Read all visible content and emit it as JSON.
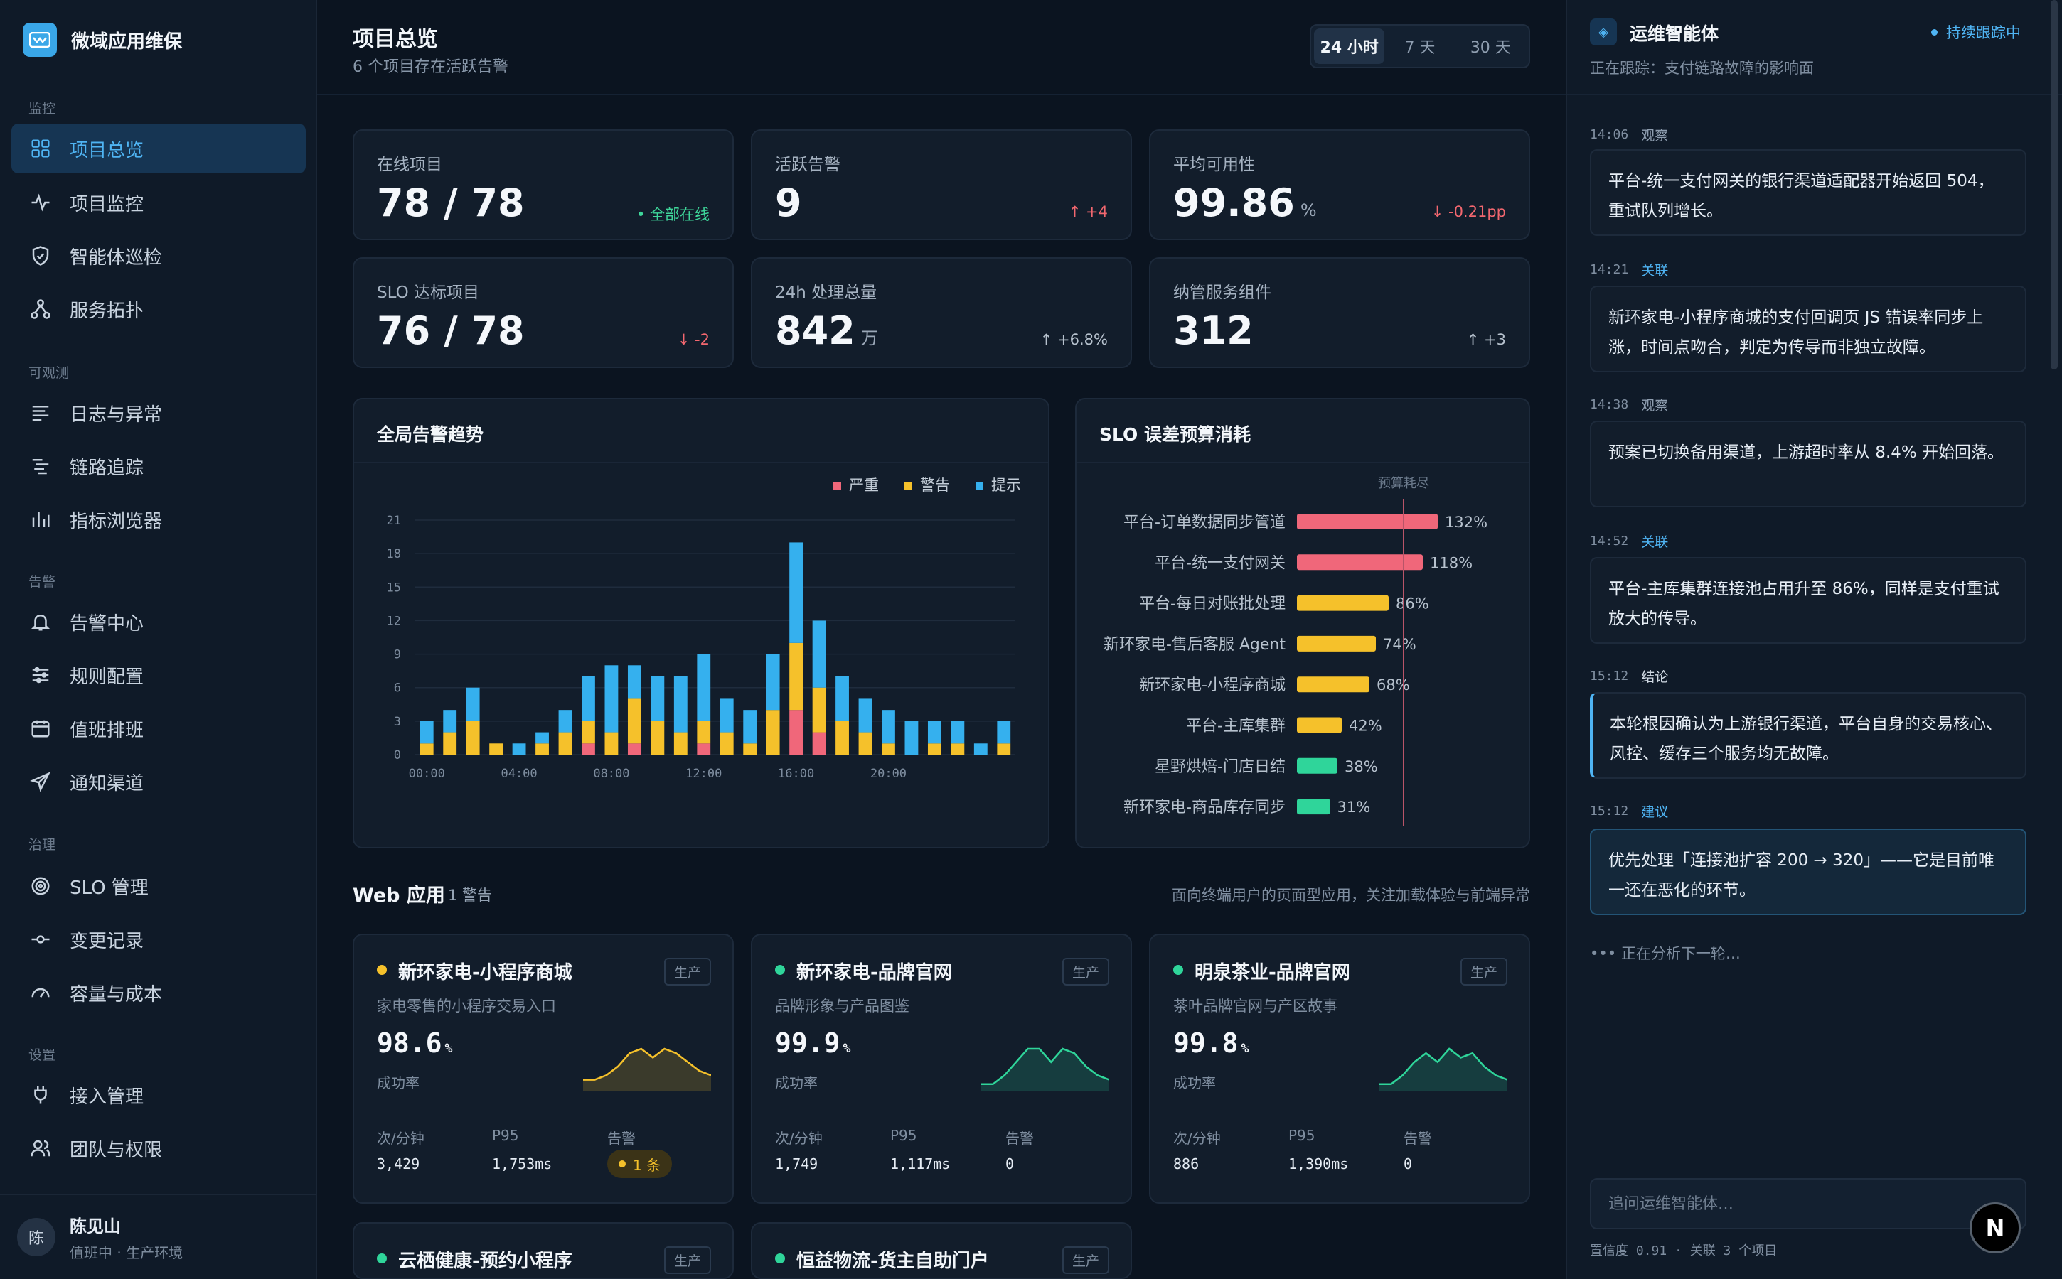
{
  "sidebar": {
    "brand": "微域应用维保",
    "sections": {
      "monitor": "监控",
      "observe": "可观测",
      "alert": "告警",
      "govern": "治理",
      "settings": "设置"
    },
    "items": [
      {
        "label": "项目总览",
        "icon": "grid-icon"
      },
      {
        "label": "项目监控",
        "icon": "activity-icon"
      },
      {
        "label": "智能体巡检",
        "icon": "shield-icon"
      },
      {
        "label": "服务拓扑",
        "icon": "topology-icon"
      },
      {
        "label": "日志与异常",
        "icon": "log-icon"
      },
      {
        "label": "链路追踪",
        "icon": "trace-icon"
      },
      {
        "label": "指标浏览器",
        "icon": "bar-chart-icon"
      },
      {
        "label": "告警中心",
        "icon": "bell-icon"
      },
      {
        "label": "规则配置",
        "icon": "sliders-icon"
      },
      {
        "label": "值班排班",
        "icon": "calendar-icon"
      },
      {
        "label": "通知渠道",
        "icon": "send-icon"
      },
      {
        "label": "SLO 管理",
        "icon": "target-icon"
      },
      {
        "label": "变更记录",
        "icon": "commit-icon"
      },
      {
        "label": "容量与成本",
        "icon": "gauge-icon"
      },
      {
        "label": "接入管理",
        "icon": "plug-icon"
      },
      {
        "label": "团队与权限",
        "icon": "users-icon"
      }
    ],
    "user": {
      "avatar": "陈",
      "name": "陈见山",
      "meta": "值班中 · 生产环境"
    }
  },
  "header": {
    "title": "项目总览",
    "subtitle": "6 个项目存在活跃告警",
    "ranges": [
      "24 小时",
      "7 天",
      "30 天"
    ],
    "active_range": "24 小时"
  },
  "stats": [
    {
      "label": "在线项目",
      "value": "78 / 78",
      "unit": "",
      "delta": "• 全部在线",
      "tone": "green"
    },
    {
      "label": "活跃告警",
      "value": "9",
      "unit": "",
      "delta": "↑ +4",
      "tone": "red"
    },
    {
      "label": "平均可用性",
      "value": "99.86",
      "unit": "%",
      "delta": "↓ -0.21pp",
      "tone": "red"
    },
    {
      "label": "SLO 达标项目",
      "value": "76 / 78",
      "unit": "",
      "delta": "↓ -2",
      "tone": "red"
    },
    {
      "label": "24h 处理总量",
      "value": "842",
      "unit": "万",
      "delta": "↑ +6.8%",
      "tone": "gray"
    },
    {
      "label": "纳管服务组件",
      "value": "312",
      "unit": "",
      "delta": "↑ +3",
      "tone": "gray"
    }
  ],
  "alert_trend": {
    "title": "全局告警趋势",
    "legend": [
      "严重",
      "警告",
      "提示"
    ],
    "colors": {
      "critical": "#f0677a",
      "warning": "#f5c12b",
      "info": "#35b0ee"
    },
    "chart_data": {
      "type": "bar",
      "stacked": true,
      "y_ticks": [
        0,
        3,
        6,
        9,
        12,
        15,
        18,
        21
      ],
      "x_ticks": [
        "00:00",
        "04:00",
        "08:00",
        "12:00",
        "16:00",
        "20:00"
      ],
      "ylim": [
        0,
        21
      ],
      "series": [
        {
          "name": "严重",
          "values": [
            0,
            0,
            0,
            0,
            0,
            0,
            0,
            1,
            0,
            1,
            0,
            0,
            1,
            0,
            0,
            0,
            4,
            2,
            0,
            0,
            0,
            0,
            0,
            0,
            0,
            0
          ]
        },
        {
          "name": "警告",
          "values": [
            1,
            2,
            3,
            1,
            0,
            1,
            2,
            2,
            2,
            4,
            3,
            2,
            2,
            2,
            1,
            4,
            6,
            4,
            3,
            2,
            1,
            0,
            1,
            1,
            0,
            1
          ]
        },
        {
          "name": "提示",
          "values": [
            2,
            2,
            3,
            0,
            1,
            1,
            2,
            4,
            6,
            3,
            4,
            5,
            6,
            3,
            3,
            5,
            9,
            6,
            4,
            3,
            3,
            3,
            2,
            2,
            1,
            2
          ]
        }
      ]
    }
  },
  "slo_budget": {
    "title": "SLO 误差预算消耗",
    "marker_label": "预算耗尽",
    "chart_data": {
      "type": "bar",
      "orientation": "horizontal",
      "marker_value": 100,
      "categories": [
        "平台-订单数据同步管道",
        "平台-统一支付网关",
        "平台-每日对账批处理",
        "新环家电-售后客服 Agent",
        "新环家电-小程序商城",
        "平台-主库集群",
        "星野烘焙-门店日结",
        "新环家电-商品库存同步"
      ],
      "values": [
        132,
        118,
        86,
        74,
        68,
        42,
        38,
        31
      ],
      "labels": [
        "132%",
        "118%",
        "86%",
        "74%",
        "68%",
        "42%",
        "38%",
        "31%"
      ],
      "colors": [
        "#f0677a",
        "#f0677a",
        "#f5c12b",
        "#f5c12b",
        "#f5c12b",
        "#f5c12b",
        "#2fd59a",
        "#2fd59a"
      ]
    }
  },
  "web_section": {
    "title": "Web 应用",
    "count": "1 警告",
    "desc": "面向终端用户的页面型应用，关注加载体验与前端异常",
    "metric_labels": {
      "rpm": "次/分钟",
      "p95": "P95",
      "alerts": "告警",
      "rate": "成功率"
    },
    "apps": [
      {
        "name": "新环家电-小程序商城",
        "env": "生产",
        "desc": "家电零售的小程序交易入口",
        "rate": "98.6",
        "pct": "%",
        "rpm": "3,429",
        "p95": "1,753ms",
        "alerts": "1 条",
        "status": "#f5c12b",
        "spark": [
          2,
          2,
          3,
          5,
          8,
          9,
          7,
          9,
          8,
          6,
          4,
          3
        ]
      },
      {
        "name": "新环家电-品牌官网",
        "env": "生产",
        "desc": "品牌形象与产品图鉴",
        "rate": "99.9",
        "pct": "%",
        "rpm": "1,749",
        "p95": "1,117ms",
        "alerts": "0",
        "status": "#2fd59a",
        "spark": [
          1,
          1,
          3,
          6,
          9,
          9,
          6,
          9,
          8,
          5,
          3,
          2
        ]
      },
      {
        "name": "明泉茶业-品牌官网",
        "env": "生产",
        "desc": "茶叶品牌官网与产区故事",
        "rate": "99.8",
        "pct": "%",
        "rpm": "886",
        "p95": "1,390ms",
        "alerts": "0",
        "status": "#2fd59a",
        "spark": [
          1,
          1,
          3,
          6,
          8,
          6,
          9,
          7,
          8,
          5,
          3,
          2
        ]
      },
      {
        "name": "云栖健康-预约小程序",
        "env": "生产",
        "status": "#2fd59a"
      },
      {
        "name": "恒益物流-货主自助门户",
        "env": "生产",
        "status": "#2fd59a"
      }
    ]
  },
  "agent": {
    "title": "运维智能体",
    "status": "持续跟踪中",
    "subject": "正在跟踪：支付链路故障的影响面",
    "timeline": [
      {
        "time": "14:06",
        "kind": "观察",
        "type": "observe",
        "text": "平台-统一支付网关的银行渠道适配器开始返回 504，重试队列增长。"
      },
      {
        "time": "14:21",
        "kind": "关联",
        "type": "link",
        "text": "新环家电-小程序商城的支付回调页 JS 错误率同步上涨，时间点吻合，判定为传导而非独立故障。"
      },
      {
        "time": "14:38",
        "kind": "观察",
        "type": "observe",
        "text": "预案已切换备用渠道，上游超时率从 8.4% 开始回落。"
      },
      {
        "time": "14:52",
        "kind": "关联",
        "type": "link",
        "text": "平台-主库集群连接池占用升至 86%，同样是支付重试放大的传导。"
      },
      {
        "time": "15:12",
        "kind": "结论",
        "type": "conclude",
        "text": "本轮根因确认为上游银行渠道，平台自身的交易核心、风控、缓存三个服务均无故障。"
      },
      {
        "time": "15:12",
        "kind": "建议",
        "type": "suggest",
        "text": "优先处理「连接池扩容 200 → 320」——它是目前唯一还在恶化的环节。"
      }
    ],
    "analyzing": "••• 正在分析下一轮…",
    "input_placeholder": "追问运维智能体…",
    "footer": "置信度 0.91 · 关联 3 个项目",
    "fab": "N"
  }
}
